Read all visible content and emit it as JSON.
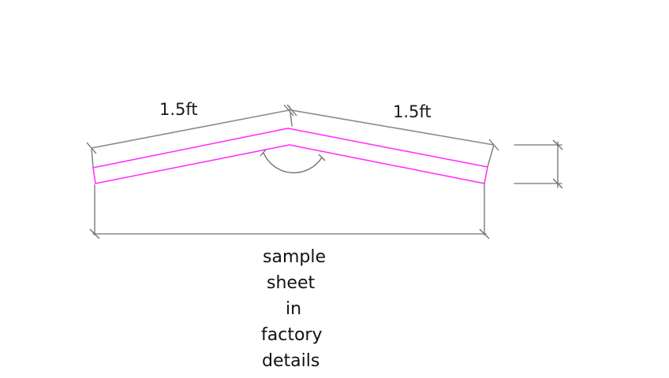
{
  "drawing": {
    "left_length_label": "1.5ft",
    "right_length_label": "1.5ft",
    "caption_lines": [
      "sample",
      "sheet",
      "in",
      "factory",
      "details"
    ],
    "colors": {
      "sheet_outline": "#ff33ff",
      "dimension_lines": "#8a8a8a",
      "text": "#111111"
    }
  }
}
